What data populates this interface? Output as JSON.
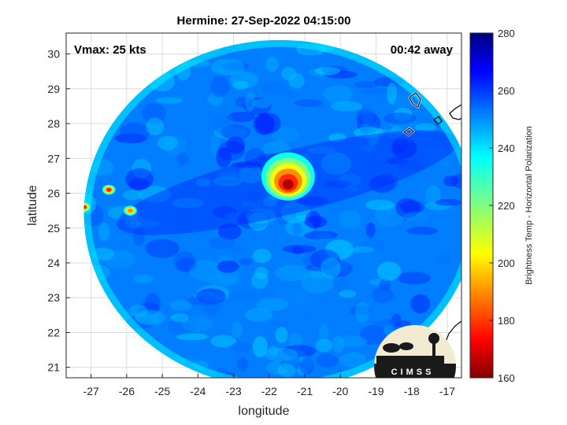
{
  "chart_data": {
    "type": "heatmap",
    "title": "Hermine: 27-Sep-2022 04:15:00",
    "xlabel": "longitude",
    "ylabel": "latitude",
    "xlim": [
      -27.7,
      -16.6
    ],
    "ylim": [
      20.7,
      30.6
    ],
    "x_ticks": [
      -27,
      -26,
      -25,
      -24,
      -23,
      -22,
      -21,
      -20,
      -19,
      -18,
      -17
    ],
    "y_ticks": [
      21,
      22,
      23,
      24,
      25,
      26,
      27,
      28,
      29,
      30
    ],
    "grid": true,
    "colorbar": {
      "label": "Brightness Temp - Horizontal Polarization",
      "min": 160,
      "max": 280,
      "ticks": [
        160,
        180,
        200,
        220,
        240,
        260,
        280
      ],
      "colormap": "jet"
    },
    "swath": {
      "center_lon": -21.7,
      "center_lat": 25.4,
      "radius_lon": 5.5,
      "radius_lat": 5.0
    },
    "background_value": 252,
    "features": [
      {
        "name": "Hermine core",
        "lon": -21.6,
        "lat": 26.3,
        "min_value": 165
      },
      {
        "name": "convection",
        "lon": -27.2,
        "lat": 25.6,
        "min_value": 170
      },
      {
        "name": "convection",
        "lon": -26.5,
        "lat": 26.1,
        "min_value": 175
      },
      {
        "name": "convection",
        "lon": -25.9,
        "lat": 25.5,
        "min_value": 190
      }
    ],
    "annotations": {
      "vmax": "Vmax: 25 kts",
      "time_away": "00:42 away"
    }
  },
  "logo": {
    "text": "CIMSS"
  }
}
